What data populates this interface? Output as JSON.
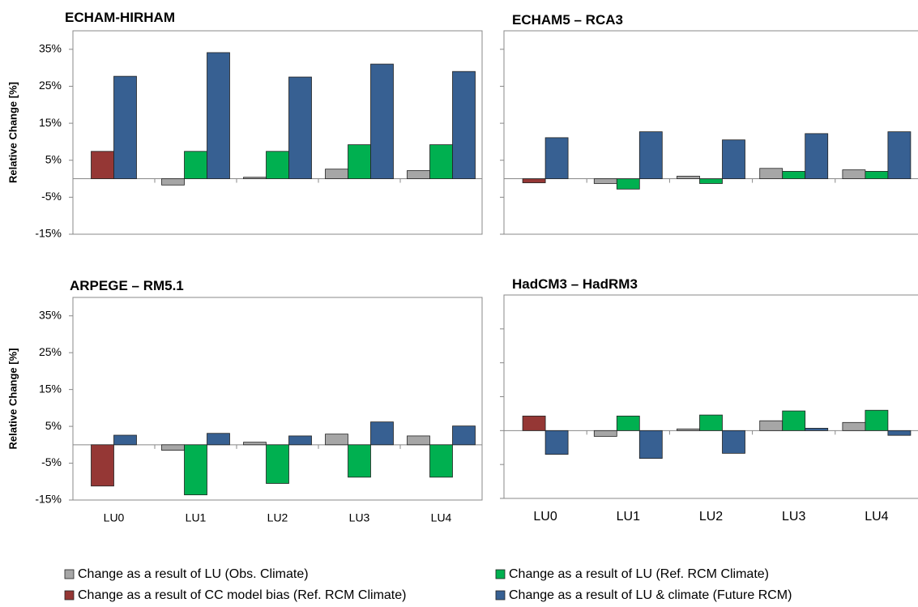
{
  "chart_data": [
    {
      "type": "bar",
      "title": "ECHAM-HIRHAM",
      "ylabel": "Relative Change [%]",
      "categories": [
        null,
        null,
        null,
        null,
        null
      ],
      "ylim": [
        -15,
        40
      ],
      "yticks": [
        {
          "value": -15,
          "label": "-15%"
        },
        {
          "value": -5,
          "label": "-5%"
        },
        {
          "value": 5,
          "label": "5%"
        },
        {
          "value": 15,
          "label": "15%"
        },
        {
          "value": 25,
          "label": "25%"
        },
        {
          "value": 35,
          "label": "35%"
        }
      ],
      "series": [
        {
          "values": [
            null,
            -1.7,
            0.4,
            2.6,
            2.2
          ]
        },
        {
          "values": [
            null,
            7.4,
            7.4,
            9.2,
            9.2
          ]
        },
        {
          "values": [
            7.4,
            null,
            null,
            null,
            null
          ]
        },
        {
          "values": [
            27.7,
            34.1,
            27.5,
            31.0,
            29.0
          ]
        }
      ]
    },
    {
      "type": "bar",
      "title": "ECHAM5 – RCA3",
      "categories": [
        null,
        null,
        null,
        null,
        null
      ],
      "ylim": [
        -15,
        40
      ],
      "yticks": [
        -15,
        -5,
        5,
        15,
        25,
        35
      ],
      "show_tick_labels": false,
      "series": [
        {
          "values": [
            null,
            -1.3,
            0.7,
            2.8,
            2.4
          ]
        },
        {
          "values": [
            null,
            -2.8,
            -1.3,
            2.0,
            2.0
          ]
        },
        {
          "values": [
            -1.1,
            null,
            null,
            null,
            null
          ]
        },
        {
          "values": [
            11.1,
            12.7,
            10.5,
            12.2,
            12.7
          ]
        }
      ]
    },
    {
      "type": "bar",
      "title": "ARPEGE – RM5.1",
      "ylabel": "Relative Change [%]",
      "categories": [
        "LU0",
        "LU1",
        "LU2",
        "LU3",
        "LU4"
      ],
      "ylim": [
        -15,
        40
      ],
      "yticks": [
        {
          "value": -15,
          "label": "-15%"
        },
        {
          "value": -5,
          "label": "-5%"
        },
        {
          "value": 5,
          "label": "5%"
        },
        {
          "value": 15,
          "label": "15%"
        },
        {
          "value": 25,
          "label": "25%"
        },
        {
          "value": 35,
          "label": "35%"
        }
      ],
      "series": [
        {
          "values": [
            null,
            -1.5,
            0.7,
            2.9,
            2.4
          ]
        },
        {
          "values": [
            null,
            -13.6,
            -10.5,
            -8.8,
            -8.8
          ]
        },
        {
          "values": [
            -11.2,
            null,
            null,
            null,
            null
          ]
        },
        {
          "values": [
            2.6,
            3.1,
            2.4,
            6.2,
            5.1
          ]
        }
      ]
    },
    {
      "type": "bar",
      "title": "HadCM3 – HadRM3",
      "categories": [
        "LU0",
        "LU1",
        "LU2",
        "LU3",
        "LU4"
      ],
      "ylim": [
        -20,
        40
      ],
      "yticks": [
        -20,
        -10,
        0,
        10,
        20,
        30
      ],
      "show_tick_labels": false,
      "series": [
        {
          "values": [
            null,
            -1.7,
            0.5,
            2.9,
            2.4
          ]
        },
        {
          "values": [
            null,
            4.3,
            4.6,
            5.8,
            6.0
          ]
        },
        {
          "values": [
            4.3,
            null,
            null,
            null,
            null
          ]
        },
        {
          "values": [
            -7.0,
            -8.2,
            -6.7,
            0.7,
            -1.4
          ]
        }
      ]
    }
  ],
  "legend": [
    {
      "name": "Change as a result of LU (Obs. Climate)",
      "color": "#a6a6a6"
    },
    {
      "name": "Change as a result of LU (Ref. RCM Climate)",
      "color": "#00b050"
    },
    {
      "name": "Change as a result of CC model bias (Ref. RCM Climate)",
      "color": "#953735"
    },
    {
      "name": "Change as a result of LU & climate (Future RCM)",
      "color": "#376092"
    }
  ]
}
